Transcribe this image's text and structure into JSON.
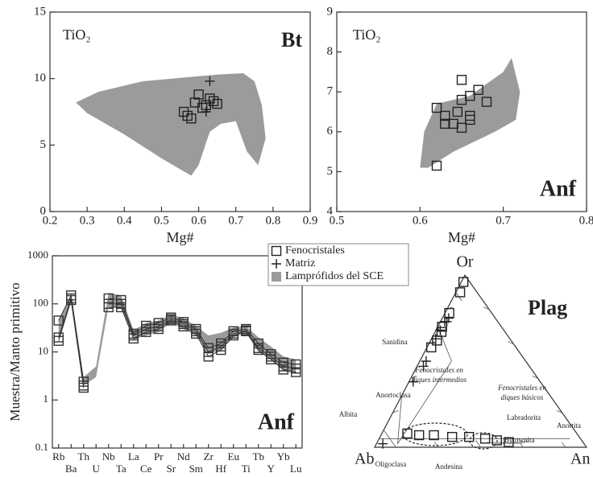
{
  "chart_data": [
    {
      "type": "scatter",
      "x_label": "Mg#",
      "annotations": [
        "TiO₂",
        "Bt"
      ],
      "xlim": [
        0.2,
        0.9
      ],
      "xticks": [
        0.2,
        0.3,
        0.4,
        0.5,
        0.6,
        0.7,
        0.8,
        0.9
      ],
      "ylim": [
        0,
        15
      ],
      "yticks": [
        0,
        5,
        10,
        15
      ],
      "series": [
        {
          "name": "Fenocristales",
          "marker": "square",
          "color": "#222222",
          "x": [
            0.56,
            0.57,
            0.58,
            0.59,
            0.6,
            0.61,
            0.62,
            0.63,
            0.64,
            0.65
          ],
          "values": [
            7.5,
            7.2,
            7.0,
            8.2,
            8.8,
            7.8,
            8.0,
            8.5,
            8.3,
            8.1
          ]
        },
        {
          "name": "Matriz",
          "marker": "plus",
          "color": "#222222",
          "x": [
            0.63,
            0.62
          ],
          "values": [
            9.8,
            7.5
          ]
        },
        {
          "name": "Lamprófidos del SCE",
          "marker": "field",
          "color": "#9b9b9b",
          "x": [
            0.27,
            0.33,
            0.45,
            0.65,
            0.72,
            0.75,
            0.77,
            0.78,
            0.76,
            0.73,
            0.7,
            0.66,
            0.63,
            0.6,
            0.58,
            0.5,
            0.4,
            0.3
          ],
          "values": [
            8.2,
            9.0,
            9.8,
            10.3,
            10.4,
            9.8,
            8.0,
            5.5,
            3.5,
            4.5,
            6.8,
            6.6,
            6.0,
            3.5,
            2.7,
            4.0,
            5.8,
            7.4
          ]
        }
      ]
    },
    {
      "type": "scatter",
      "x_label": "Mg#",
      "annotations": [
        "TiO₂",
        "Anf"
      ],
      "xlim": [
        0.5,
        0.8
      ],
      "xticks": [
        0.5,
        0.6,
        0.7,
        0.8
      ],
      "ylim": [
        4,
        9
      ],
      "yticks": [
        4,
        5,
        6,
        7,
        8,
        9
      ],
      "series": [
        {
          "marker": "field",
          "color": "#9b9b9b",
          "x": [
            0.6,
            0.605,
            0.62,
            0.66,
            0.7,
            0.71,
            0.72,
            0.715,
            0.69,
            0.64,
            0.61
          ],
          "values": [
            5.1,
            6.0,
            6.7,
            6.9,
            7.5,
            7.85,
            7.0,
            6.3,
            6.0,
            5.5,
            5.1
          ]
        },
        {
          "marker": "square",
          "color": "#222222",
          "x": [
            0.62,
            0.62,
            0.63,
            0.63,
            0.64,
            0.645,
            0.65,
            0.65,
            0.65,
            0.66,
            0.66,
            0.67,
            0.68,
            0.66
          ],
          "values": [
            6.6,
            5.15,
            6.4,
            6.2,
            6.2,
            6.5,
            7.3,
            6.8,
            6.1,
            6.4,
            6.3,
            7.05,
            6.75,
            6.9
          ]
        }
      ]
    },
    {
      "type": "line",
      "y_label": "Muestra/Manto primitivo",
      "annotations": [
        "Anf"
      ],
      "log_scale": true,
      "categories": [
        "Rb",
        "Ba",
        "Th",
        "U",
        "Nb",
        "Ta",
        "La",
        "Ce",
        "Pr",
        "Sr",
        "Nd",
        "Sm",
        "Zr",
        "Hf",
        "Eu",
        "Ti",
        "Tb",
        "Y",
        "Yb",
        "Lu"
      ],
      "ylim": [
        0.1,
        1000
      ],
      "yticks": [
        0.1,
        1,
        10,
        100,
        1000
      ],
      "series": [
        {
          "marker": "field",
          "color": "#9b9b9b",
          "low": [
            18,
            110,
            2,
            3,
            90,
            80,
            18,
            22,
            26,
            40,
            30,
            22,
            9,
            11,
            20,
            25,
            10,
            7,
            4,
            3.5
          ],
          "high": [
            45,
            160,
            3,
            5,
            170,
            150,
            28,
            40,
            45,
            60,
            50,
            35,
            22,
            25,
            32,
            35,
            20,
            13,
            8,
            7
          ]
        },
        {
          "marker": "square",
          "color": "#333333",
          "values": [
            45,
            150,
            2.4,
            null,
            130,
            120,
            24,
            35,
            40,
            52,
            42,
            30,
            12,
            15,
            27,
            30,
            15,
            9,
            6,
            5.5
          ]
        },
        {
          "marker": "square",
          "color": "#333333",
          "values": [
            20,
            130,
            2.0,
            null,
            100,
            100,
            22,
            30,
            34,
            48,
            38,
            27,
            10,
            13,
            24,
            28,
            12,
            8,
            5,
            4.5
          ]
        },
        {
          "marker": "square",
          "color": "#333333",
          "values": [
            17,
            120,
            1.8,
            null,
            85,
            85,
            19,
            26,
            30,
            45,
            34,
            24,
            8,
            11,
            22,
            27,
            11,
            7,
            4.3,
            3.8
          ]
        }
      ]
    },
    {
      "type": "ternary",
      "vertex_labels": {
        "ab": "Ab",
        "an": "An",
        "or": "Or"
      },
      "annotations": [
        "Plag",
        "Sanidina",
        "Anortoclasa",
        "Albita",
        "Oligoclasa",
        "Andesina",
        "Labradorita",
        "Bytownita",
        "Anortita",
        "Fenocristales en",
        "diques intermedios",
        "Fenocristales en",
        "diques básicos"
      ],
      "series": [
        {
          "marker": "field",
          "color": "#9b9b9b",
          "ab": [
            42,
            30,
            24,
            30,
            46
          ],
          "an": [
            56,
            68,
            72,
            67,
            51
          ],
          "or": [
            2,
            2,
            4,
            3,
            3
          ]
        },
        {
          "marker": "square",
          "color": "#222222",
          "ab": [
            3,
            8,
            20,
            28,
            30,
            35,
            40,
            80,
            75,
            68,
            60,
            52,
            45,
            40,
            35
          ],
          "an": [
            1,
            2,
            2,
            2,
            3,
            3,
            2,
            12,
            18,
            25,
            34,
            42,
            50,
            56,
            62
          ],
          "or": [
            96,
            90,
            78,
            70,
            67,
            62,
            58,
            8,
            7,
            7,
            6,
            6,
            5,
            4,
            3
          ]
        },
        {
          "marker": "plus",
          "color": "#222222",
          "ab": [
            22,
            25,
            24,
            30,
            35,
            47,
            50,
            60,
            95
          ],
          "an": [
            3,
            2,
            3,
            2,
            2,
            3,
            3,
            2,
            3
          ],
          "or": [
            75,
            73,
            73,
            68,
            63,
            50,
            47,
            38,
            2
          ]
        }
      ]
    }
  ]
}
